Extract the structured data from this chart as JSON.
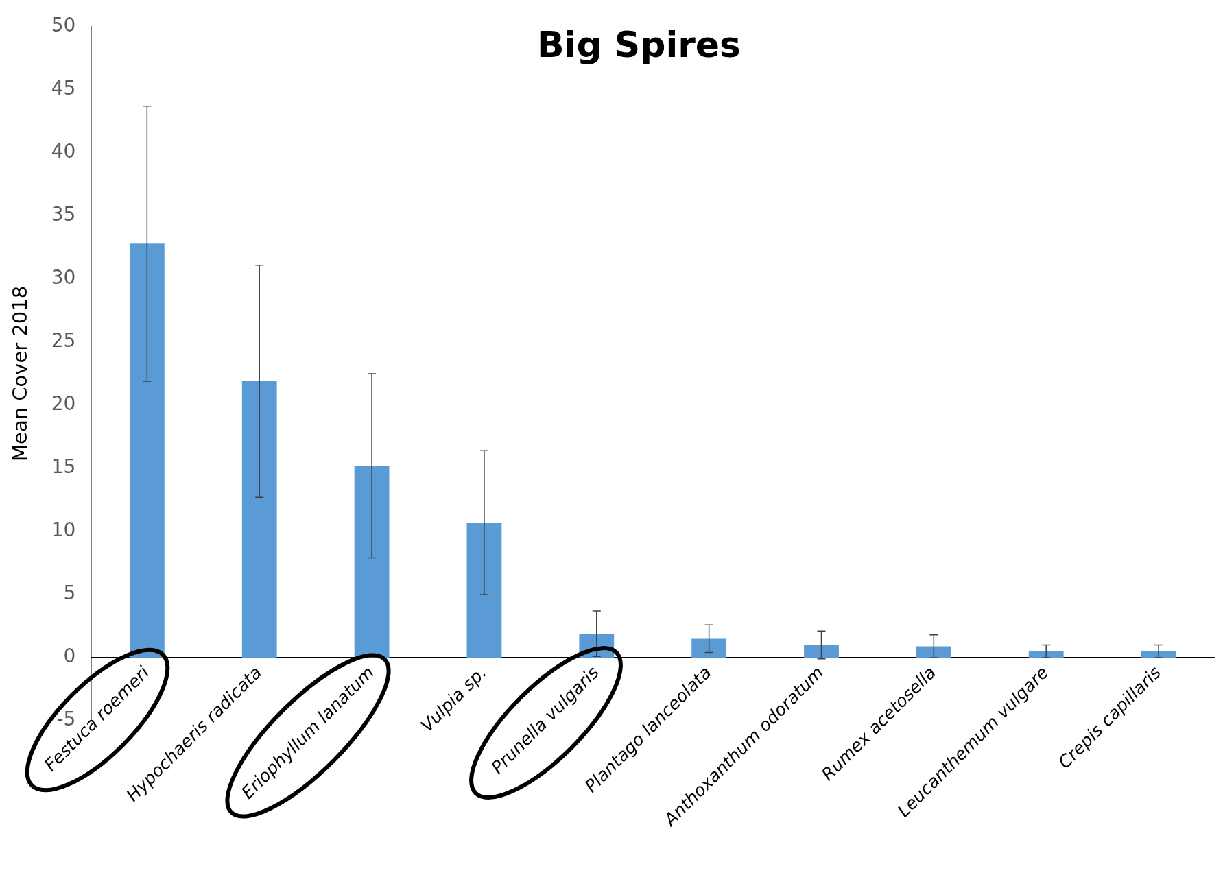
{
  "chart_data": {
    "type": "bar",
    "title": "Big Spires",
    "ylabel": "Mean Cover 2018",
    "categories": [
      "Festuca roemeri",
      "Hypochaeris radicata",
      "Eriophyllum lanatum",
      "Vulpia sp.",
      "Prunella vulgaris",
      "Plantago lanceolata",
      "Anthoxanthum odoratum",
      "Rumex acetosella",
      "Leucanthemum vulgare",
      "Crepis capillaris"
    ],
    "values": [
      32.8,
      21.9,
      15.2,
      10.7,
      1.9,
      1.5,
      1.0,
      0.9,
      0.5,
      0.5
    ],
    "errors": [
      10.9,
      9.2,
      7.3,
      5.7,
      1.8,
      1.1,
      1.1,
      0.9,
      0.5,
      0.5
    ],
    "color": "#5b9bd5",
    "ylim": [
      -5,
      50
    ],
    "yticks": [
      -5,
      0,
      5,
      10,
      15,
      20,
      25,
      30,
      35,
      40,
      45,
      50
    ],
    "grid": false,
    "legend": false
  }
}
